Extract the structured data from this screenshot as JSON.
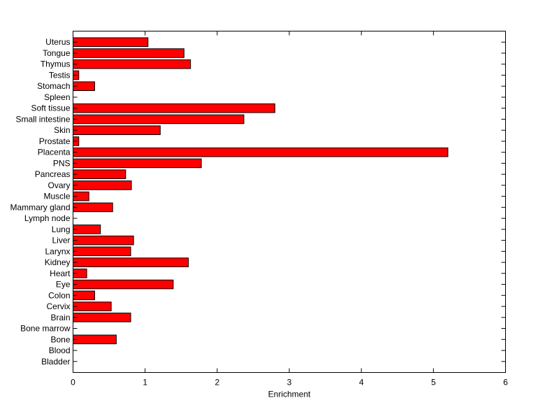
{
  "chart_data": {
    "type": "bar",
    "orientation": "horizontal",
    "title": "",
    "xlabel": "Enrichment",
    "ylabel": "",
    "xlim": [
      0,
      6
    ],
    "xticks": [
      "0",
      "1",
      "2",
      "3",
      "4",
      "5",
      "6"
    ],
    "grid": false,
    "categories": [
      "Bladder",
      "Blood",
      "Bone",
      "Bone marrow",
      "Brain",
      "Cervix",
      "Colon",
      "Eye",
      "Heart",
      "Kidney",
      "Larynx",
      "Liver",
      "Lung",
      "Lymph node",
      "Mammary gland",
      "Muscle",
      "Ovary",
      "Pancreas",
      "PNS",
      "Placenta",
      "Prostate",
      "Skin",
      "Small intestine",
      "Soft tissue",
      "Spleen",
      "Stomach",
      "Testis",
      "Thymus",
      "Tongue",
      "Uterus"
    ],
    "values": [
      0,
      0,
      0.6,
      0,
      0.8,
      0.53,
      0.3,
      1.39,
      0.19,
      1.6,
      0.8,
      0.84,
      0.38,
      0,
      0.55,
      0.22,
      0.81,
      0.73,
      1.78,
      5.2,
      0.08,
      1.21,
      2.37,
      2.8,
      0,
      0.3,
      0.08,
      1.63,
      1.54,
      1.04
    ],
    "bar_color": "#ff0000",
    "bar_edge_color": "#000000"
  }
}
